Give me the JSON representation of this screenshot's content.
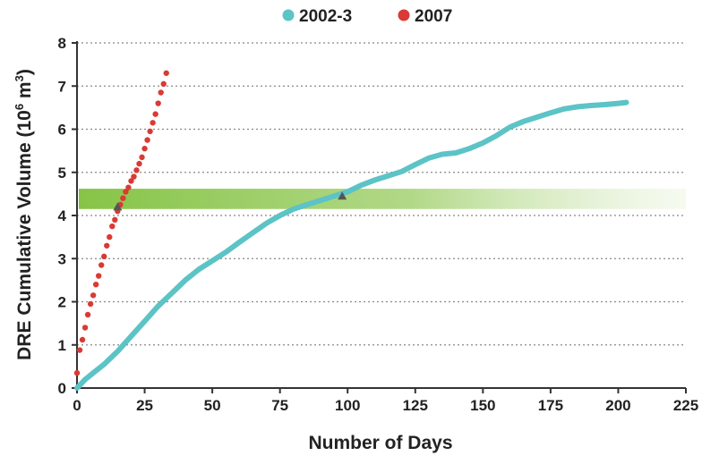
{
  "colors": {
    "series_2002_3": "#5cc3c6",
    "series_2007": "#d93a35",
    "band": "#8ac64a",
    "grid": "#888888",
    "marker": "#555555"
  },
  "chart_data": {
    "type": "line",
    "xlabel": "Number of Days",
    "ylabel_main": "DRE Cumulative Volume (10",
    "ylabel_sup": "6",
    "ylabel_mid": " m",
    "ylabel_sup2": "3",
    "ylabel_end": ")",
    "xlim": [
      0,
      225
    ],
    "ylim": [
      0,
      8
    ],
    "xticks": [
      0,
      25,
      50,
      75,
      100,
      125,
      150,
      175,
      200,
      225
    ],
    "yticks": [
      0,
      1,
      2,
      3,
      4,
      5,
      6,
      7,
      8
    ],
    "grid": "horizontal dotted",
    "legend_position": "top-center",
    "band": {
      "y_range": [
        4.15,
        4.62
      ],
      "fade": "left-to-right"
    },
    "series": [
      {
        "name": "2002-3",
        "style": "thick line",
        "x": [
          0,
          3,
          6,
          10,
          15,
          20,
          25,
          30,
          35,
          40,
          45,
          50,
          55,
          60,
          65,
          70,
          75,
          80,
          85,
          90,
          95,
          100,
          105,
          110,
          115,
          120,
          125,
          130,
          135,
          140,
          145,
          150,
          155,
          160,
          165,
          170,
          175,
          180,
          185,
          190,
          195,
          200,
          203
        ],
        "values": [
          0.0,
          0.2,
          0.35,
          0.55,
          0.85,
          1.2,
          1.55,
          1.9,
          2.2,
          2.5,
          2.75,
          2.95,
          3.15,
          3.38,
          3.6,
          3.82,
          4.0,
          4.15,
          4.25,
          4.35,
          4.45,
          4.55,
          4.7,
          4.82,
          4.92,
          5.02,
          5.18,
          5.33,
          5.42,
          5.45,
          5.55,
          5.68,
          5.85,
          6.05,
          6.18,
          6.28,
          6.38,
          6.47,
          6.52,
          6.55,
          6.57,
          6.6,
          6.62
        ]
      },
      {
        "name": "2007",
        "style": "dotted markers",
        "x": [
          0,
          1,
          2,
          3,
          4,
          5,
          6,
          7,
          8,
          9,
          10,
          11,
          12,
          13,
          14,
          15,
          16,
          17,
          18,
          19,
          20,
          21,
          22,
          23,
          24,
          25,
          26,
          27,
          28,
          29,
          30,
          31,
          32,
          33
        ],
        "values": [
          0.35,
          0.88,
          1.12,
          1.4,
          1.7,
          1.95,
          2.15,
          2.4,
          2.6,
          2.85,
          3.05,
          3.3,
          3.5,
          3.75,
          3.9,
          4.1,
          4.25,
          4.4,
          4.55,
          4.65,
          4.8,
          4.9,
          5.05,
          5.2,
          5.35,
          5.55,
          5.75,
          5.95,
          6.15,
          6.35,
          6.6,
          6.85,
          7.05,
          7.3
        ]
      }
    ],
    "markers": [
      {
        "series": "2002-3",
        "x": 98,
        "y": 4.45,
        "shape": "triangle"
      },
      {
        "series": "2007",
        "x": 15,
        "y": 4.2,
        "shape": "triangle"
      }
    ]
  }
}
